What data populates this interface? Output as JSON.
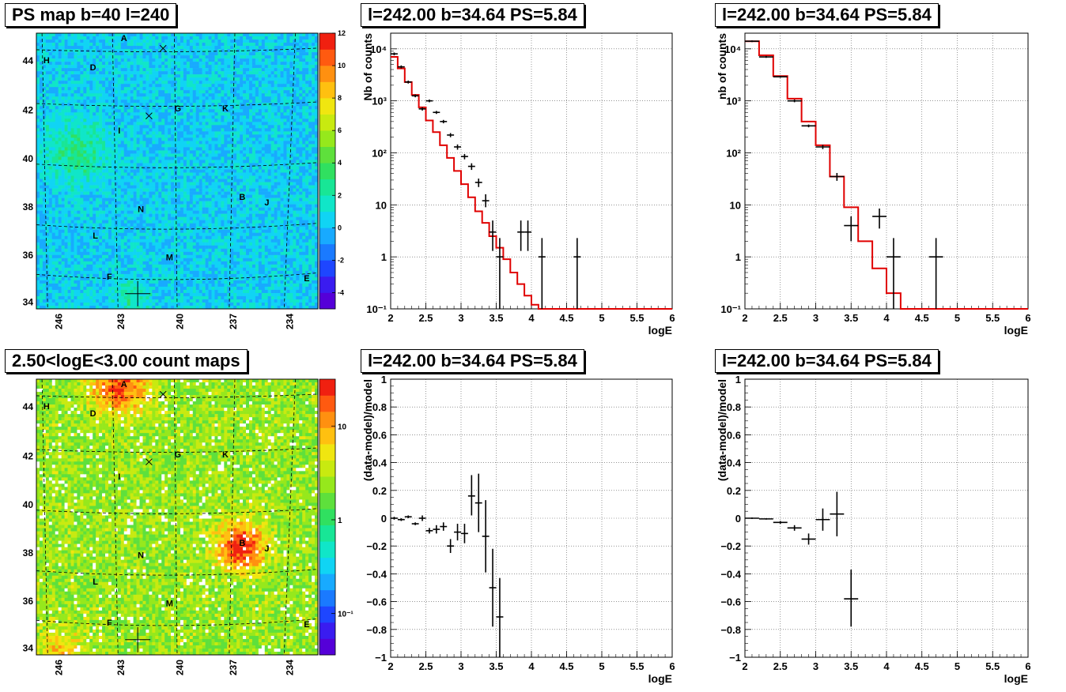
{
  "titles": {
    "map_top": "PS map b=40 l=240",
    "map_bottom": "2.50<logE<3.00 count maps",
    "spec_top_mid": "l=242.00 b=34.64 PS=5.84",
    "spec_top_right": "l=242.00 b=34.64 PS=5.84",
    "res_bottom_mid": "l=242.00 b=34.64 PS=5.84",
    "res_bottom_right": "l=242.00 b=34.64 PS=5.84"
  },
  "colors": {
    "model_line": "#e00000",
    "data_marker": "#000000",
    "frame": "#000000",
    "grid": "#555555"
  },
  "chart_data": [
    {
      "type": "heatmap",
      "name": "ps_map",
      "title": "PS map b=40 l=240",
      "x_ticks": [
        "246",
        "243",
        "240",
        "237",
        "234"
      ],
      "y_ticks": [
        "34",
        "36",
        "38",
        "40",
        "42",
        "44"
      ],
      "colorbar_ticks": [
        "12",
        "10",
        "8",
        "6",
        "4",
        "2",
        "0",
        "-2",
        "-4"
      ],
      "colorbar_range": [
        -5,
        12
      ],
      "background_level": 0,
      "source_labels": [
        "A",
        "B",
        "D",
        "E",
        "F",
        "G",
        "H",
        "I",
        "J",
        "K",
        "L",
        "M",
        "N"
      ],
      "markers": [
        "x",
        "x",
        "+"
      ]
    },
    {
      "type": "heatmap",
      "name": "count_map",
      "title": "2.50<logE<3.00 count maps",
      "x_ticks": [
        "246",
        "243",
        "240",
        "237",
        "234"
      ],
      "y_ticks": [
        "34",
        "36",
        "38",
        "40",
        "42",
        "44"
      ],
      "colorbar_ticks": [
        "10",
        "1",
        "10⁻¹"
      ],
      "colorbar_scale": "log",
      "source_labels": [
        "A",
        "B",
        "D",
        "E",
        "F",
        "G",
        "H",
        "I",
        "J",
        "K",
        "L",
        "M",
        "N"
      ],
      "markers": [
        "x",
        "x",
        "+"
      ]
    },
    {
      "type": "line",
      "name": "spectrum_fine",
      "title": "l=242.00 b=34.64 PS=5.84",
      "xlabel": "logE",
      "ylabel": "Nb of counts",
      "xlim": [
        2,
        6
      ],
      "ylim": [
        0.1,
        20000
      ],
      "yscale": "log",
      "x_ticks": [
        "2",
        "2.5",
        "3",
        "3.5",
        "4",
        "4.5",
        "5",
        "5.5",
        "6"
      ],
      "y_ticks": [
        "10⁻¹",
        "1",
        "10",
        "10²",
        "10³",
        "10⁴"
      ],
      "grid": true,
      "model_bin_edges": [
        2.0,
        2.1,
        2.2,
        2.3,
        2.4,
        2.5,
        2.6,
        2.7,
        2.8,
        2.9,
        3.0,
        3.1,
        3.2,
        3.3,
        3.4,
        3.5,
        3.6,
        3.7,
        3.8,
        3.9,
        4.0,
        4.1,
        4.2,
        6.0
      ],
      "model_values": [
        7000,
        4200,
        2300,
        1300,
        750,
        420,
        250,
        140,
        80,
        45,
        25,
        14,
        7.5,
        4.5,
        2.5,
        1.5,
        0.9,
        0.5,
        0.3,
        0.18,
        0.12,
        0.1,
        0.1
      ],
      "data_points": [
        {
          "x": 2.05,
          "y": 8000,
          "ylo": 7500,
          "yhi": 8500,
          "xerr": 0.05
        },
        {
          "x": 2.15,
          "y": 4500,
          "ylo": 4200,
          "yhi": 4800,
          "xerr": 0.05
        },
        {
          "x": 2.25,
          "y": 2300,
          "ylo": 2150,
          "yhi": 2450,
          "xerr": 0.05
        },
        {
          "x": 2.35,
          "y": 1250,
          "ylo": 1170,
          "yhi": 1330,
          "xerr": 0.05
        },
        {
          "x": 2.45,
          "y": 700,
          "ylo": 650,
          "yhi": 750,
          "xerr": 0.05
        },
        {
          "x": 2.55,
          "y": 1000,
          "ylo": 940,
          "yhi": 1060,
          "xerr": 0.05
        },
        {
          "x": 2.65,
          "y": 600,
          "ylo": 560,
          "yhi": 640,
          "xerr": 0.05
        },
        {
          "x": 2.75,
          "y": 400,
          "ylo": 370,
          "yhi": 430,
          "xerr": 0.05
        },
        {
          "x": 2.85,
          "y": 220,
          "ylo": 200,
          "yhi": 240,
          "xerr": 0.05
        },
        {
          "x": 2.95,
          "y": 130,
          "ylo": 115,
          "yhi": 145,
          "xerr": 0.05
        },
        {
          "x": 3.05,
          "y": 85,
          "ylo": 75,
          "yhi": 95,
          "xerr": 0.05
        },
        {
          "x": 3.15,
          "y": 55,
          "ylo": 47,
          "yhi": 63,
          "xerr": 0.05
        },
        {
          "x": 3.25,
          "y": 27,
          "ylo": 22,
          "yhi": 32,
          "xerr": 0.05
        },
        {
          "x": 3.35,
          "y": 12,
          "ylo": 9,
          "yhi": 16,
          "xerr": 0.05
        },
        {
          "x": 3.45,
          "y": 3,
          "ylo": 1.3,
          "yhi": 5,
          "xerr": 0.05
        },
        {
          "x": 3.55,
          "y": 1,
          "ylo": 0.1,
          "yhi": 2.3,
          "xerr": 0.05
        },
        {
          "x": 3.85,
          "y": 3,
          "ylo": 1.3,
          "yhi": 5,
          "xerr": 0.05
        },
        {
          "x": 3.95,
          "y": 3,
          "ylo": 1.3,
          "yhi": 5,
          "xerr": 0.05
        },
        {
          "x": 4.15,
          "y": 1,
          "ylo": 0.1,
          "yhi": 2.3,
          "xerr": 0.05
        },
        {
          "x": 4.65,
          "y": 1,
          "ylo": 0.1,
          "yhi": 2.3,
          "xerr": 0.05
        }
      ]
    },
    {
      "type": "line",
      "name": "spectrum_coarse",
      "title": "l=242.00 b=34.64 PS=5.84",
      "xlabel": "logE",
      "ylabel": "nb of counts",
      "xlim": [
        2,
        6
      ],
      "ylim": [
        0.1,
        20000
      ],
      "yscale": "log",
      "x_ticks": [
        "2",
        "2.5",
        "3",
        "3.5",
        "4",
        "4.5",
        "5",
        "5.5",
        "6"
      ],
      "y_ticks": [
        "10⁻¹",
        "1",
        "10",
        "10²",
        "10³",
        "10⁴"
      ],
      "grid": true,
      "model_bin_edges": [
        2.0,
        2.2,
        2.4,
        2.6,
        2.8,
        3.0,
        3.2,
        3.4,
        3.6,
        3.8,
        4.0,
        4.2,
        6.0
      ],
      "model_values": [
        14000,
        7500,
        3000,
        1100,
        400,
        140,
        35,
        9,
        2,
        0.6,
        0.2,
        0.1
      ],
      "data_points": [
        {
          "x": 2.1,
          "y": 14000,
          "ylo": 13500,
          "yhi": 14500,
          "xerr": 0.1
        },
        {
          "x": 2.3,
          "y": 7000,
          "ylo": 6700,
          "yhi": 7300,
          "xerr": 0.1
        },
        {
          "x": 2.5,
          "y": 2900,
          "ylo": 2780,
          "yhi": 3020,
          "xerr": 0.1
        },
        {
          "x": 2.7,
          "y": 1000,
          "ylo": 940,
          "yhi": 1060,
          "xerr": 0.1
        },
        {
          "x": 2.9,
          "y": 330,
          "ylo": 310,
          "yhi": 350,
          "xerr": 0.1
        },
        {
          "x": 3.1,
          "y": 130,
          "ylo": 118,
          "yhi": 142,
          "xerr": 0.1
        },
        {
          "x": 3.3,
          "y": 35,
          "ylo": 29,
          "yhi": 41,
          "xerr": 0.1
        },
        {
          "x": 3.5,
          "y": 4,
          "ylo": 2,
          "yhi": 6,
          "xerr": 0.1
        },
        {
          "x": 3.9,
          "y": 6,
          "ylo": 3.5,
          "yhi": 8.5,
          "xerr": 0.1
        },
        {
          "x": 4.1,
          "y": 1,
          "ylo": 0.1,
          "yhi": 2.3,
          "xerr": 0.1
        },
        {
          "x": 4.7,
          "y": 1,
          "ylo": 0.1,
          "yhi": 2.3,
          "xerr": 0.1
        }
      ]
    },
    {
      "type": "scatter",
      "name": "residuals_fine",
      "title": "l=242.00 b=34.64 PS=5.84",
      "xlabel": "logE",
      "ylabel": "(data-model)/model",
      "xlim": [
        2,
        6
      ],
      "ylim": [
        -1,
        1
      ],
      "x_ticks": [
        "2",
        "2.5",
        "3",
        "3.5",
        "4",
        "4.5",
        "5",
        "5.5",
        "6"
      ],
      "y_ticks": [
        "−1",
        "−0.8",
        "−0.6",
        "−0.4",
        "−0.2",
        "0",
        "0.2",
        "0.4",
        "0.6",
        "0.8",
        "1"
      ],
      "grid": true,
      "data_points": [
        {
          "x": 2.05,
          "y": 0.0,
          "ylo": -0.01,
          "yhi": 0.01,
          "xerr": 0.05
        },
        {
          "x": 2.15,
          "y": -0.01,
          "ylo": -0.02,
          "yhi": 0.0,
          "xerr": 0.05
        },
        {
          "x": 2.25,
          "y": 0.01,
          "ylo": 0.0,
          "yhi": 0.02,
          "xerr": 0.05
        },
        {
          "x": 2.35,
          "y": -0.04,
          "ylo": -0.05,
          "yhi": -0.03,
          "xerr": 0.05
        },
        {
          "x": 2.45,
          "y": 0.0,
          "ylo": -0.02,
          "yhi": 0.02,
          "xerr": 0.05
        },
        {
          "x": 2.55,
          "y": -0.09,
          "ylo": -0.11,
          "yhi": -0.07,
          "xerr": 0.05
        },
        {
          "x": 2.65,
          "y": -0.08,
          "ylo": -0.11,
          "yhi": -0.05,
          "xerr": 0.05
        },
        {
          "x": 2.75,
          "y": -0.06,
          "ylo": -0.09,
          "yhi": -0.03,
          "xerr": 0.05
        },
        {
          "x": 2.85,
          "y": -0.2,
          "ylo": -0.25,
          "yhi": -0.15,
          "xerr": 0.05
        },
        {
          "x": 2.95,
          "y": -0.1,
          "ylo": -0.16,
          "yhi": -0.04,
          "xerr": 0.05
        },
        {
          "x": 3.05,
          "y": -0.11,
          "ylo": -0.18,
          "yhi": -0.04,
          "xerr": 0.05
        },
        {
          "x": 3.15,
          "y": 0.16,
          "ylo": 0.02,
          "yhi": 0.31,
          "xerr": 0.05
        },
        {
          "x": 3.25,
          "y": 0.11,
          "ylo": -0.1,
          "yhi": 0.32,
          "xerr": 0.05
        },
        {
          "x": 3.35,
          "y": -0.13,
          "ylo": -0.39,
          "yhi": 0.13,
          "xerr": 0.05
        },
        {
          "x": 3.45,
          "y": -0.5,
          "ylo": -0.78,
          "yhi": -0.22,
          "xerr": 0.05
        },
        {
          "x": 3.55,
          "y": -0.71,
          "ylo": -1.0,
          "yhi": -0.43,
          "xerr": 0.05
        }
      ]
    },
    {
      "type": "scatter",
      "name": "residuals_coarse",
      "title": "l=242.00 b=34.64 PS=5.84",
      "xlabel": "logE",
      "ylabel": "(data-model)/model",
      "xlim": [
        2,
        6
      ],
      "ylim": [
        -1,
        1
      ],
      "x_ticks": [
        "2",
        "2.5",
        "3",
        "3.5",
        "4",
        "4.5",
        "5",
        "5.5",
        "6"
      ],
      "y_ticks": [
        "−1",
        "−0.8",
        "−0.6",
        "−0.4",
        "−0.2",
        "0",
        "0.2",
        "0.4",
        "0.6",
        "0.8",
        "1"
      ],
      "grid": true,
      "data_points": [
        {
          "x": 2.1,
          "y": 0.0,
          "ylo": -0.005,
          "yhi": 0.005,
          "xerr": 0.1
        },
        {
          "x": 2.3,
          "y": -0.005,
          "ylo": -0.01,
          "yhi": 0.0,
          "xerr": 0.1
        },
        {
          "x": 2.5,
          "y": -0.03,
          "ylo": -0.04,
          "yhi": -0.02,
          "xerr": 0.1
        },
        {
          "x": 2.7,
          "y": -0.07,
          "ylo": -0.09,
          "yhi": -0.05,
          "xerr": 0.1
        },
        {
          "x": 2.9,
          "y": -0.15,
          "ylo": -0.19,
          "yhi": -0.11,
          "xerr": 0.1
        },
        {
          "x": 3.1,
          "y": -0.01,
          "ylo": -0.09,
          "yhi": 0.07,
          "xerr": 0.1
        },
        {
          "x": 3.3,
          "y": 0.03,
          "ylo": -0.13,
          "yhi": 0.19,
          "xerr": 0.1
        },
        {
          "x": 3.5,
          "y": -0.58,
          "ylo": -0.78,
          "yhi": -0.37,
          "xerr": 0.1
        }
      ]
    }
  ]
}
